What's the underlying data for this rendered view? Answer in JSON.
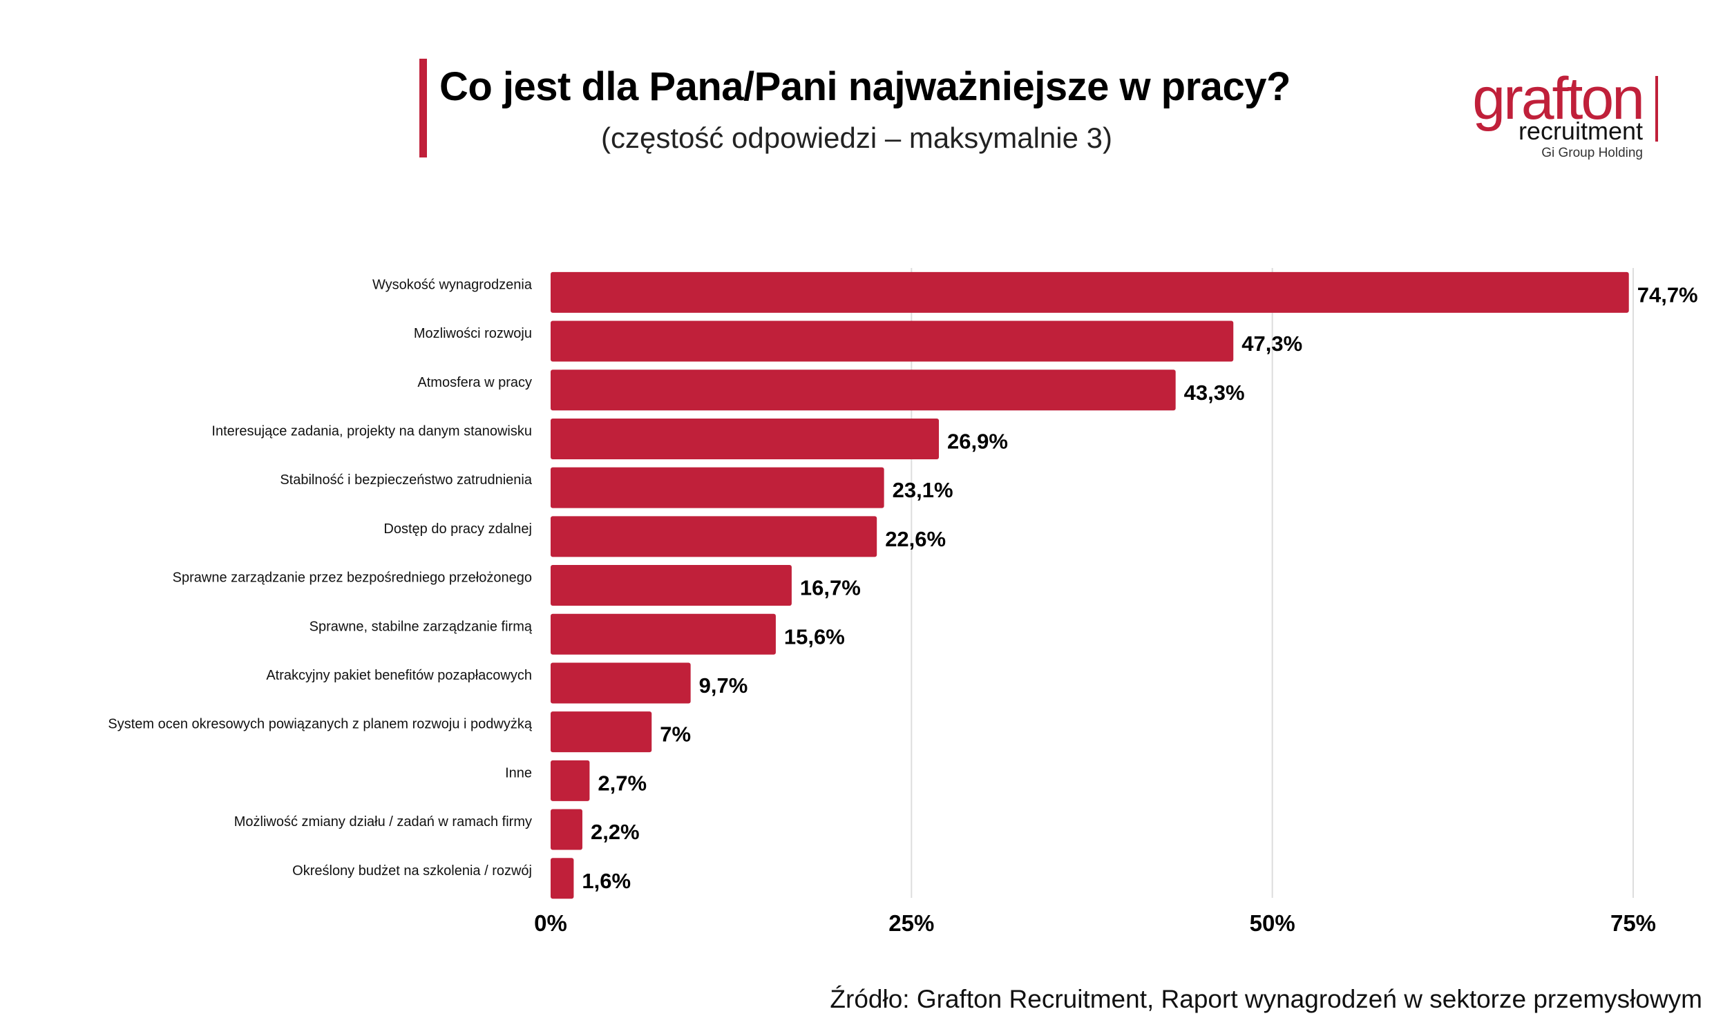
{
  "title": "Co jest dla Pana/Pani najważniejsze w pracy?",
  "subtitle": "(częstość odpowiedzi – maksymalnie 3)",
  "logo": {
    "brand": "grafton",
    "sub": "recruitment",
    "group": "Gi Group Holding"
  },
  "source": "Źródło: Grafton Recruitment, Raport wynagrodzeń w sektorze przemysłowym",
  "colors": {
    "bar": "#c0203a",
    "accent": "#c0203a",
    "grid": "#dddddd"
  },
  "chart_data": {
    "type": "bar",
    "orientation": "horizontal",
    "categories": [
      "Wysokość wynagrodzenia",
      "Mozliwości rozwoju",
      "Atmosfera w pracy",
      "Interesujące zadania, projekty na danym stanowisku",
      "Stabilność i bezpieczeństwo zatrudnienia",
      "Dostęp do pracy zdalnej",
      "Sprawne zarządzanie przez bezpośredniego przełożonego",
      "Sprawne, stabilne zarządzanie firmą",
      "Atrakcyjny pakiet benefitów pozapłacowych",
      "System ocen okresowych powiązanych z planem rozwoju i podwyżką",
      "Inne",
      "Możliwość zmiany działu / zadań w ramach firmy",
      "Określony budżet na szkolenia / rozwój"
    ],
    "values": [
      74.7,
      47.3,
      43.3,
      26.9,
      23.1,
      22.6,
      16.7,
      15.6,
      9.7,
      7,
      2.7,
      2.2,
      1.6
    ],
    "value_labels": [
      "74,7%",
      "47,3%",
      "43,3%",
      "26,9%",
      "23,1%",
      "22,6%",
      "16,7%",
      "15,6%",
      "9,7%",
      "7%",
      "2,7%",
      "2,2%",
      "1,6%"
    ],
    "xlim": [
      0,
      75
    ],
    "ticks": [
      0,
      25,
      50,
      75
    ],
    "tick_labels": [
      "0%",
      "25%",
      "50%",
      "75%"
    ],
    "grid": true,
    "legend": "none"
  }
}
